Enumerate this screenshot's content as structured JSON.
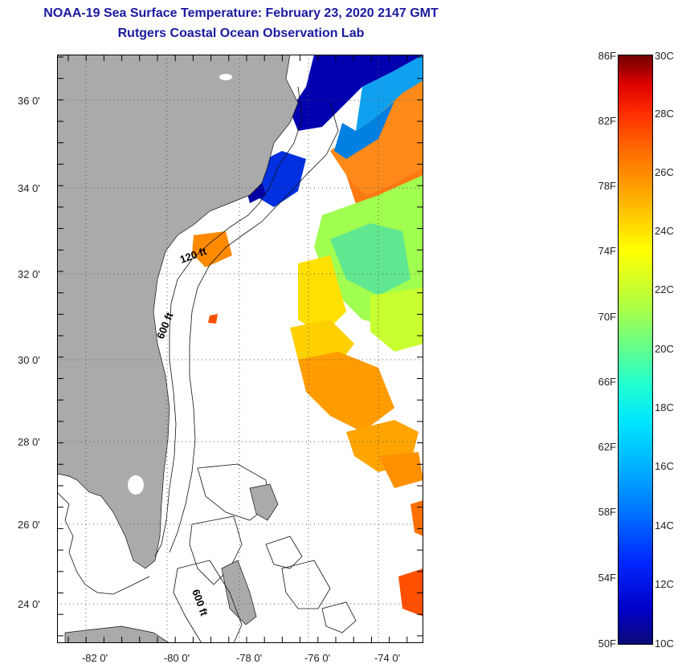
{
  "header": {
    "title": "NOAA-19 Sea Surface Temperature:  February 23, 2020 2147 GMT",
    "subtitle": "Rutgers Coastal Ocean Observation Lab"
  },
  "map": {
    "region": "US Southeast coast, Florida, Bahamas",
    "lat_range": [
      23,
      37
    ],
    "lon_range": [
      -83,
      -73
    ],
    "lat_labels": [
      "36 0'",
      "34 0'",
      "32 0'",
      "30 0'",
      "28 0'",
      "26 0'",
      "24 0'"
    ],
    "lon_labels": [
      "-82 0'",
      "-80 0'",
      "-78 0'",
      "-76 0'",
      "-74 0'"
    ],
    "contour_labels": [
      "120 ft",
      "600 ft",
      "600 ft"
    ],
    "land_color": "#aaaaaa",
    "cloud_color": "#ffffff"
  },
  "colorbar": {
    "fahrenheit_labels": [
      "86F",
      "82F",
      "78F",
      "74F",
      "70F",
      "66F",
      "62F",
      "58F",
      "54F",
      "50F"
    ],
    "celsius_labels": [
      "30C",
      "28C",
      "26C",
      "24C",
      "22C",
      "20C",
      "18C",
      "16C",
      "14C",
      "12C",
      "10C"
    ],
    "range_f": [
      50,
      86
    ],
    "range_c": [
      10,
      30
    ]
  }
}
